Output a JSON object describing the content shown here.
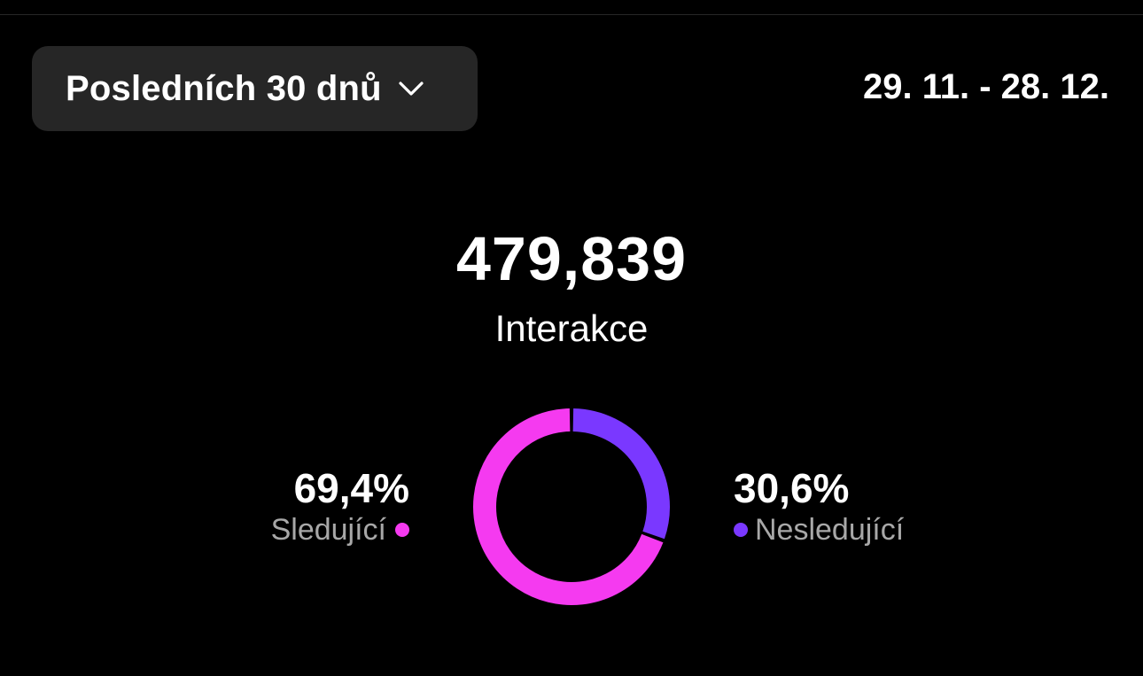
{
  "header": {
    "range_label": "Posledních 30 dnů",
    "range_icon": "chevron-down-icon",
    "date_range": "29. 11. - 28. 12."
  },
  "summary": {
    "value": "479,839",
    "label": "Interakce"
  },
  "breakdown": {
    "followers": {
      "percent_text": "69,4%",
      "label": "Sledující",
      "percent": 69.4,
      "color": "#f53af0"
    },
    "non_followers": {
      "percent_text": "30,6%",
      "label": "Nesledující",
      "percent": 30.6,
      "color": "#7a38ff"
    }
  },
  "chart_data": {
    "type": "pie",
    "categories": [
      "Sledující",
      "Nesledující"
    ],
    "values": [
      69.4,
      30.6
    ],
    "colors": [
      "#f53af0",
      "#7a38ff"
    ]
  }
}
